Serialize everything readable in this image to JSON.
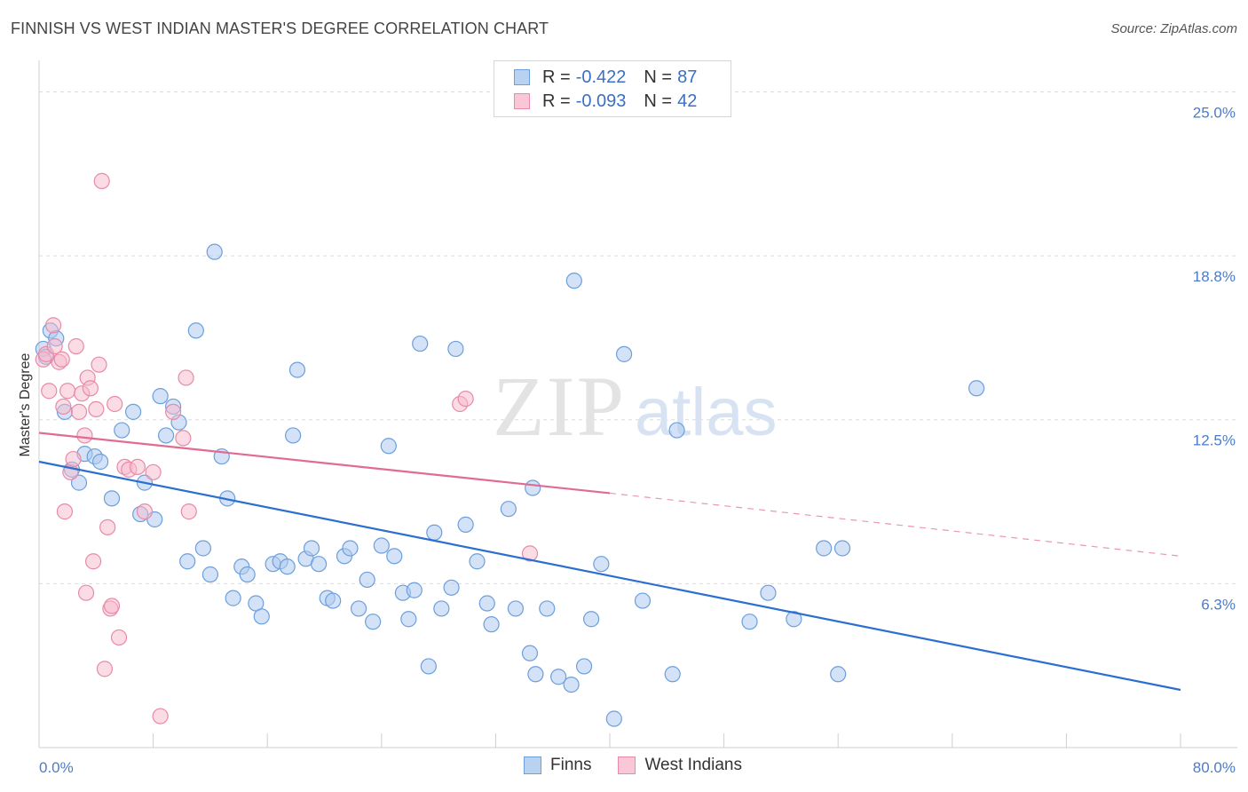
{
  "header": {
    "title": "FINNISH VS WEST INDIAN MASTER'S DEGREE CORRELATION CHART",
    "source": "Source: ZipAtlas.com"
  },
  "watermark": {
    "zip": "ZIP",
    "atlas": "atlas"
  },
  "legend": {
    "rows": [
      {
        "r_label": "R =",
        "r_value": "-0.422",
        "n_label": "N =",
        "n_value": "87"
      },
      {
        "r_label": "R =",
        "r_value": "-0.093",
        "n_label": "N =",
        "n_value": "42"
      }
    ]
  },
  "bottom_legend": {
    "finns": "Finns",
    "west_indians": "West Indians"
  },
  "chart_data": {
    "type": "scatter",
    "ylabel": "Master's Degree",
    "xlim": [
      0,
      80
    ],
    "ylim": [
      0,
      26.2
    ],
    "y_ticks": [
      {
        "value": 6.25,
        "label": "6.3%"
      },
      {
        "value": 12.5,
        "label": "12.5%"
      },
      {
        "value": 18.75,
        "label": "18.8%"
      },
      {
        "value": 25.0,
        "label": "25.0%"
      }
    ],
    "x_tick_labels": [
      {
        "value": 0,
        "label": "0.0%"
      },
      {
        "value": 80,
        "label": "80.0%"
      }
    ],
    "x_minor_ticks": [
      8,
      16,
      24,
      32,
      40,
      48,
      56,
      64,
      72,
      80
    ],
    "colors": {
      "finns_fill": "#aecbef",
      "finns_stroke": "#6c9fdc",
      "finns_line": "#2a6fd0",
      "wi_fill": "#f7b9cc",
      "wi_stroke": "#e88aa8",
      "wi_line": "#e06b93"
    },
    "series": [
      {
        "name": "Finns",
        "trend": {
          "x0": 0,
          "y0": 10.9,
          "x1": 80,
          "y1": 2.2
        },
        "points": [
          [
            0.3,
            15.2
          ],
          [
            0.5,
            14.9
          ],
          [
            0.8,
            15.9
          ],
          [
            1.2,
            15.6
          ],
          [
            1.8,
            12.8
          ],
          [
            2.3,
            10.6
          ],
          [
            2.8,
            10.1
          ],
          [
            3.2,
            11.2
          ],
          [
            3.9,
            11.1
          ],
          [
            4.3,
            10.9
          ],
          [
            5.1,
            9.5
          ],
          [
            5.8,
            12.1
          ],
          [
            6.6,
            12.8
          ],
          [
            7.1,
            8.9
          ],
          [
            7.4,
            10.1
          ],
          [
            8.1,
            8.7
          ],
          [
            8.5,
            13.4
          ],
          [
            8.9,
            11.9
          ],
          [
            9.4,
            13.0
          ],
          [
            9.8,
            12.4
          ],
          [
            10.4,
            7.1
          ],
          [
            11.0,
            15.9
          ],
          [
            11.5,
            7.6
          ],
          [
            12.0,
            6.6
          ],
          [
            12.3,
            18.9
          ],
          [
            12.8,
            11.1
          ],
          [
            13.2,
            9.5
          ],
          [
            13.6,
            5.7
          ],
          [
            14.2,
            6.9
          ],
          [
            14.6,
            6.6
          ],
          [
            15.2,
            5.5
          ],
          [
            15.6,
            5.0
          ],
          [
            16.4,
            7.0
          ],
          [
            16.9,
            7.1
          ],
          [
            17.4,
            6.9
          ],
          [
            17.8,
            11.9
          ],
          [
            18.1,
            14.4
          ],
          [
            18.7,
            7.2
          ],
          [
            19.1,
            7.6
          ],
          [
            19.6,
            7.0
          ],
          [
            20.2,
            5.7
          ],
          [
            20.6,
            5.6
          ],
          [
            21.4,
            7.3
          ],
          [
            21.8,
            7.6
          ],
          [
            22.4,
            5.3
          ],
          [
            23.0,
            6.4
          ],
          [
            23.4,
            4.8
          ],
          [
            24.0,
            7.7
          ],
          [
            24.5,
            11.5
          ],
          [
            24.9,
            7.3
          ],
          [
            25.5,
            5.9
          ],
          [
            25.9,
            4.9
          ],
          [
            26.3,
            6.0
          ],
          [
            26.7,
            15.4
          ],
          [
            27.3,
            3.1
          ],
          [
            27.7,
            8.2
          ],
          [
            28.2,
            5.3
          ],
          [
            28.9,
            6.1
          ],
          [
            29.2,
            15.2
          ],
          [
            29.9,
            8.5
          ],
          [
            30.7,
            7.1
          ],
          [
            31.4,
            5.5
          ],
          [
            31.7,
            4.7
          ],
          [
            32.9,
            9.1
          ],
          [
            33.4,
            5.3
          ],
          [
            34.4,
            3.6
          ],
          [
            34.6,
            9.9
          ],
          [
            34.8,
            2.8
          ],
          [
            35.6,
            5.3
          ],
          [
            36.4,
            2.7
          ],
          [
            37.3,
            2.4
          ],
          [
            37.5,
            17.8
          ],
          [
            38.2,
            3.1
          ],
          [
            38.7,
            4.9
          ],
          [
            39.4,
            7.0
          ],
          [
            40.3,
            1.1
          ],
          [
            41.0,
            15.0
          ],
          [
            42.3,
            5.6
          ],
          [
            44.4,
            2.8
          ],
          [
            44.7,
            12.1
          ],
          [
            49.8,
            4.8
          ],
          [
            51.1,
            5.9
          ],
          [
            52.9,
            4.9
          ],
          [
            55.0,
            7.6
          ],
          [
            56.0,
            2.8
          ],
          [
            56.3,
            7.6
          ],
          [
            65.7,
            13.7
          ]
        ]
      },
      {
        "name": "West Indians",
        "trend": {
          "x0": 0,
          "y0": 12.0,
          "x1": 40.0,
          "y1": 9.7,
          "dash_x1": 80,
          "dash_y1": 7.3
        },
        "points": [
          [
            0.3,
            14.8
          ],
          [
            0.5,
            15.0
          ],
          [
            0.7,
            13.6
          ],
          [
            1.0,
            16.1
          ],
          [
            1.1,
            15.3
          ],
          [
            1.4,
            14.7
          ],
          [
            1.6,
            14.8
          ],
          [
            1.7,
            13.0
          ],
          [
            1.8,
            9.0
          ],
          [
            2.0,
            13.6
          ],
          [
            2.2,
            10.5
          ],
          [
            2.4,
            11.0
          ],
          [
            2.6,
            15.3
          ],
          [
            2.8,
            12.8
          ],
          [
            3.0,
            13.5
          ],
          [
            3.2,
            11.9
          ],
          [
            3.3,
            5.9
          ],
          [
            3.4,
            14.1
          ],
          [
            3.6,
            13.7
          ],
          [
            3.8,
            7.1
          ],
          [
            4.0,
            12.9
          ],
          [
            4.2,
            14.6
          ],
          [
            4.4,
            21.6
          ],
          [
            4.6,
            3.0
          ],
          [
            4.8,
            8.4
          ],
          [
            5.0,
            5.3
          ],
          [
            5.1,
            5.4
          ],
          [
            5.3,
            13.1
          ],
          [
            5.6,
            4.2
          ],
          [
            6.0,
            10.7
          ],
          [
            6.3,
            10.6
          ],
          [
            6.9,
            10.7
          ],
          [
            7.4,
            9.0
          ],
          [
            8.0,
            10.5
          ],
          [
            8.5,
            1.2
          ],
          [
            9.4,
            12.8
          ],
          [
            10.1,
            11.8
          ],
          [
            10.3,
            14.1
          ],
          [
            10.5,
            9.0
          ],
          [
            29.5,
            13.1
          ],
          [
            29.9,
            13.3
          ],
          [
            34.4,
            7.4
          ]
        ]
      }
    ]
  }
}
